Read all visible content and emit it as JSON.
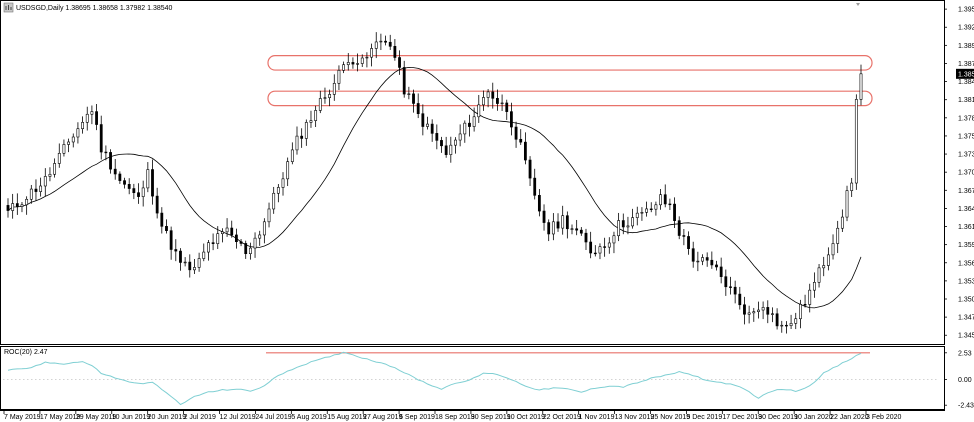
{
  "header": {
    "symbol_line": "USDSGD,Daily  1.38695 1.38658 1.37982 1.38540"
  },
  "indicator": {
    "label": "ROC(20) 2.47",
    "icon": "chart-icon"
  },
  "colors": {
    "candle": "#000000",
    "ma": "#000000",
    "zone": "#e8726a",
    "roc_line": "#7fcfd3",
    "price_tag_bg": "#000000",
    "grid_dots": "#c8c8c8"
  },
  "chart_data": [
    {
      "type": "candlestick",
      "title": "USDSGD,Daily",
      "ohlc_last": {
        "open": 1.38695,
        "high": 1.38658,
        "low": 1.37982,
        "close": 1.3854
      },
      "current_price_label": "1.38540",
      "y_ticks": [
        "1.39540",
        "1.39260",
        "1.38980",
        "1.38700",
        "1.38420",
        "1.38140",
        "1.37860",
        "1.37580",
        "1.37300",
        "1.37020",
        "1.36740",
        "1.36460",
        "1.36180",
        "1.35900",
        "1.35620",
        "1.35340",
        "1.35060",
        "1.34780",
        "1.34500"
      ],
      "ylim": [
        1.3438,
        1.3965
      ],
      "x_ticks": [
        "7 May 2019",
        "17 May 2019",
        "29 May 2019",
        "10 Jun 2019",
        "20 Jun 2019",
        "2 Jul 2019",
        "12 Jul 2019",
        "24 Jul 2019",
        "5 Aug 2019",
        "15 Aug 2019",
        "27 Aug 2019",
        "6 Sep 2019",
        "18 Sep 2019",
        "30 Sep 2019",
        "10 Oct 2019",
        "22 Oct 2019",
        "1 Nov 2019",
        "13 Nov 2019",
        "25 Nov 2019",
        "5 Dec 2019",
        "17 Dec 2019",
        "30 Dec 2019",
        "10 Jan 2020",
        "22 Jan 2020",
        "3 Feb 2020"
      ],
      "close_keypoints": [
        [
          0,
          1.364
        ],
        [
          8,
          1.369
        ],
        [
          14,
          1.376
        ],
        [
          18,
          1.38
        ],
        [
          20,
          1.374
        ],
        [
          24,
          1.369
        ],
        [
          28,
          1.366
        ],
        [
          30,
          1.37
        ],
        [
          33,
          1.362
        ],
        [
          37,
          1.356
        ],
        [
          40,
          1.355
        ],
        [
          43,
          1.359
        ],
        [
          47,
          1.361
        ],
        [
          51,
          1.358
        ],
        [
          54,
          1.361
        ],
        [
          58,
          1.368
        ],
        [
          62,
          1.375
        ],
        [
          66,
          1.38
        ],
        [
          70,
          1.384
        ],
        [
          73,
          1.388
        ],
        [
          76,
          1.387
        ],
        [
          79,
          1.39
        ],
        [
          81,
          1.391
        ],
        [
          83,
          1.388
        ],
        [
          85,
          1.383
        ],
        [
          88,
          1.379
        ],
        [
          91,
          1.376
        ],
        [
          94,
          1.373
        ],
        [
          97,
          1.376
        ],
        [
          100,
          1.379
        ],
        [
          103,
          1.383
        ],
        [
          105,
          1.381
        ],
        [
          107,
          1.38
        ],
        [
          110,
          1.374
        ],
        [
          113,
          1.366
        ],
        [
          116,
          1.361
        ],
        [
          119,
          1.363
        ],
        [
          122,
          1.361
        ],
        [
          125,
          1.358
        ],
        [
          128,
          1.359
        ],
        [
          131,
          1.362
        ],
        [
          134,
          1.363
        ],
        [
          137,
          1.364
        ],
        [
          140,
          1.366
        ],
        [
          142,
          1.365
        ],
        [
          144,
          1.361
        ],
        [
          147,
          1.357
        ],
        [
          150,
          1.356
        ],
        [
          152,
          1.355
        ],
        [
          155,
          1.352
        ],
        [
          157,
          1.35
        ],
        [
          159,
          1.348
        ],
        [
          162,
          1.35
        ],
        [
          165,
          1.347
        ],
        [
          167,
          1.346
        ],
        [
          170,
          1.349
        ],
        [
          173,
          1.353
        ],
        [
          176,
          1.358
        ],
        [
          179,
          1.364
        ],
        [
          181,
          1.369
        ],
        [
          182,
          1.381
        ],
        [
          183,
          1.3854
        ]
      ],
      "moving_average_period": 20,
      "zones": [
        {
          "low": 1.3866,
          "high": 1.3876
        },
        {
          "low": 1.3811,
          "high": 1.3821
        }
      ]
    },
    {
      "type": "line",
      "title": "ROC(20) 2.47",
      "y_ticks": [
        "2.53",
        "0.00",
        "-2.43"
      ],
      "ylim": [
        -2.6,
        2.7
      ],
      "current_value": 2.47,
      "level_line": 2.53,
      "keypoints": [
        [
          0,
          0.9
        ],
        [
          4,
          1.0
        ],
        [
          8,
          1.6
        ],
        [
          12,
          1.5
        ],
        [
          16,
          1.7
        ],
        [
          18,
          1.3
        ],
        [
          20,
          0.6
        ],
        [
          24,
          0.0
        ],
        [
          28,
          -0.4
        ],
        [
          31,
          -0.3
        ],
        [
          34,
          -1.2
        ],
        [
          37,
          -2.4
        ],
        [
          40,
          -1.6
        ],
        [
          43,
          -1.2
        ],
        [
          46,
          -1.0
        ],
        [
          49,
          -0.9
        ],
        [
          52,
          -1.1
        ],
        [
          55,
          -0.6
        ],
        [
          58,
          0.4
        ],
        [
          61,
          1.0
        ],
        [
          64,
          1.5
        ],
        [
          67,
          1.9
        ],
        [
          70,
          2.3
        ],
        [
          72,
          2.6
        ],
        [
          75,
          2.2
        ],
        [
          78,
          1.8
        ],
        [
          81,
          1.5
        ],
        [
          84,
          0.9
        ],
        [
          87,
          0.2
        ],
        [
          90,
          -0.4
        ],
        [
          93,
          -0.9
        ],
        [
          96,
          -0.3
        ],
        [
          99,
          -0.1
        ],
        [
          102,
          0.6
        ],
        [
          105,
          0.5
        ],
        [
          108,
          0.0
        ],
        [
          111,
          -0.6
        ],
        [
          114,
          -1.0
        ],
        [
          117,
          -0.8
        ],
        [
          120,
          -0.9
        ],
        [
          123,
          -1.2
        ],
        [
          126,
          -0.8
        ],
        [
          129,
          -0.6
        ],
        [
          132,
          -0.7
        ],
        [
          135,
          -0.3
        ],
        [
          138,
          0.1
        ],
        [
          141,
          0.4
        ],
        [
          144,
          0.7
        ],
        [
          147,
          0.4
        ],
        [
          150,
          -0.1
        ],
        [
          153,
          -0.3
        ],
        [
          156,
          -0.5
        ],
        [
          159,
          -1.2
        ],
        [
          161,
          -1.8
        ],
        [
          163,
          -1.2
        ],
        [
          166,
          -0.9
        ],
        [
          169,
          -1.1
        ],
        [
          172,
          -0.6
        ],
        [
          175,
          0.6
        ],
        [
          178,
          1.3
        ],
        [
          181,
          2.0
        ],
        [
          183,
          2.47
        ]
      ]
    }
  ]
}
